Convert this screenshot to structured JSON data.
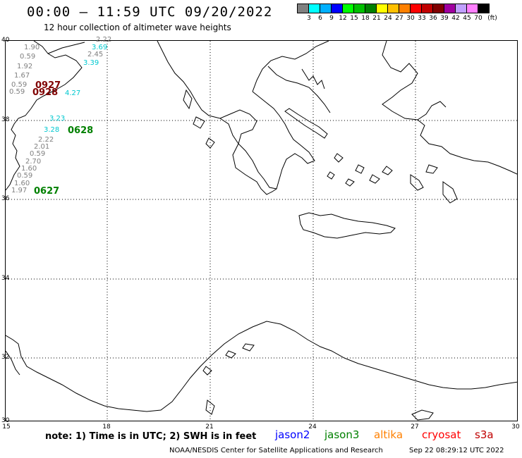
{
  "title": "00:00 – 11:59 UTC 09/20/2022",
  "subtitle": "12 hour collection of altimeter wave heights",
  "colorbar": {
    "colors": [
      "#808080",
      "#00ffff",
      "#00b0ff",
      "#0000ff",
      "#00ff00",
      "#00c000",
      "#008000",
      "#ffff00",
      "#ffc000",
      "#ff8000",
      "#ff0000",
      "#c00000",
      "#800000",
      "#a000a0",
      "#c0a0ff",
      "#ff80ff",
      "#000000"
    ],
    "ticks": [
      "3",
      "6",
      "9",
      "12",
      "15",
      "18",
      "21",
      "24",
      "27",
      "30",
      "33",
      "36",
      "39",
      "42",
      "45",
      "70",
      "(ft)"
    ]
  },
  "axes": {
    "lat_labels": [
      "40",
      "38",
      "36",
      "34",
      "32",
      "30"
    ],
    "lon_labels": [
      "15",
      "18",
      "21",
      "24",
      "27",
      "30"
    ]
  },
  "wave_heights": [
    {
      "text": "2.22",
      "color": "#808080"
    },
    {
      "text": "3.69",
      "color": "#00c8d0"
    },
    {
      "text": "1.90",
      "color": "#808080"
    },
    {
      "text": "2.45",
      "color": "#808080"
    },
    {
      "text": "0.59",
      "color": "#808080"
    },
    {
      "text": "3.39",
      "color": "#00c8d0"
    },
    {
      "text": "1.92",
      "color": "#808080"
    },
    {
      "text": "1.67",
      "color": "#808080"
    },
    {
      "text": "0.59",
      "color": "#808080"
    },
    {
      "text": "0.59",
      "color": "#808080"
    },
    {
      "text": "4.27",
      "color": "#00c8d0"
    },
    {
      "text": "3.23",
      "color": "#00c8d0"
    },
    {
      "text": "3.28",
      "color": "#00c8d0"
    },
    {
      "text": "2.22",
      "color": "#808080"
    },
    {
      "text": "2.01",
      "color": "#808080"
    },
    {
      "text": "0.59",
      "color": "#808080"
    },
    {
      "text": "2.70",
      "color": "#808080"
    },
    {
      "text": "1.60",
      "color": "#808080"
    },
    {
      "text": "0.59",
      "color": "#808080"
    },
    {
      "text": "1.60",
      "color": "#808080"
    },
    {
      "text": "1.97",
      "color": "#808080"
    }
  ],
  "pass_times": [
    {
      "text": "0927",
      "color": "#800000"
    },
    {
      "text": "0928",
      "color": "#800000"
    },
    {
      "text": "0628",
      "color": "#008000"
    },
    {
      "text": "0627",
      "color": "#008000"
    }
  ],
  "note": "note:  1) Time is in UTC;  2) SWH is in feet",
  "legend": [
    {
      "name": "jason2",
      "color": "#0000ff"
    },
    {
      "name": "jason3",
      "color": "#008000"
    },
    {
      "name": "altika",
      "color": "#ff8000"
    },
    {
      "name": "cryosat",
      "color": "#ff0000"
    },
    {
      "name": "s3a",
      "color": "#c00000"
    }
  ],
  "credit": "NOAA/NESDIS Center for Satellite Applications and Research",
  "timestamp": "Sep 22 08:29:12 UTC 2022"
}
